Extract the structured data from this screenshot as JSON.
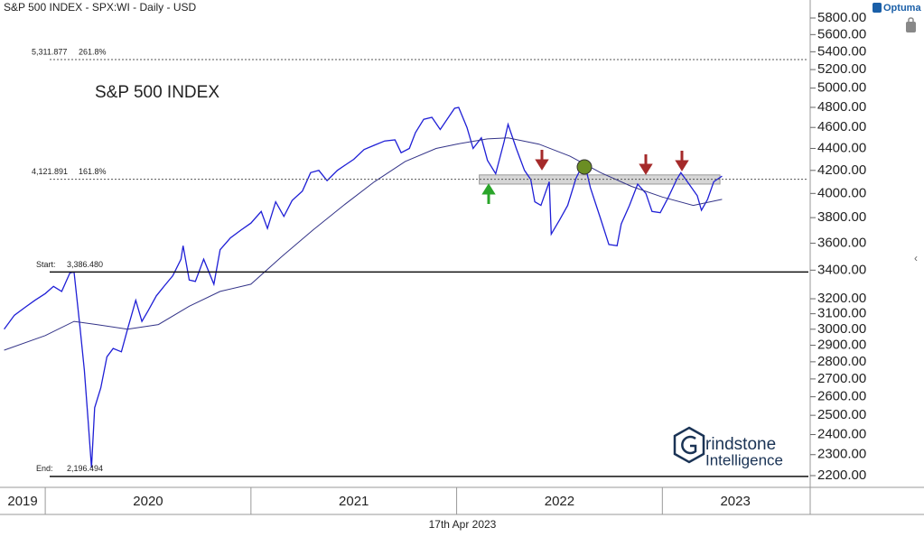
{
  "header": {
    "title": "S&P 500 INDEX - SPX:WI - Daily - USD",
    "brand": "Optuma",
    "date": "17th Apr 2023",
    "logo_line1": "rindstone",
    "logo_line2": "Intelligence"
  },
  "chart_data": {
    "type": "line",
    "title": "S&P 500 INDEX",
    "log_scale": true,
    "xlim": [
      2019.78,
      2023.71
    ],
    "ylim": [
      2146,
      5822
    ],
    "xticks": [
      {
        "value": 2019,
        "label": "2019"
      },
      {
        "value": 2020,
        "label": "2020"
      },
      {
        "value": 2021,
        "label": "2021"
      },
      {
        "value": 2022,
        "label": "2022"
      },
      {
        "value": 2023,
        "label": "2023"
      }
    ],
    "yticks": [
      {
        "value": 2200,
        "label": "2200.00"
      },
      {
        "value": 2300,
        "label": "2300.00"
      },
      {
        "value": 2400,
        "label": "2400.00"
      },
      {
        "value": 2500,
        "label": "2500.00"
      },
      {
        "value": 2600,
        "label": "2600.00"
      },
      {
        "value": 2700,
        "label": "2700.00"
      },
      {
        "value": 2800,
        "label": "2800.00"
      },
      {
        "value": 2900,
        "label": "2900.00"
      },
      {
        "value": 3000,
        "label": "3000.00"
      },
      {
        "value": 3100,
        "label": "3100.00"
      },
      {
        "value": 3200,
        "label": "3200.00"
      },
      {
        "value": 3400,
        "label": "3400.00"
      },
      {
        "value": 3600,
        "label": "3600.00"
      },
      {
        "value": 3800,
        "label": "3800.00"
      },
      {
        "value": 4000,
        "label": "4000.00"
      },
      {
        "value": 4200,
        "label": "4200.00"
      },
      {
        "value": 4400,
        "label": "4400.00"
      },
      {
        "value": 4600,
        "label": "4600.00"
      },
      {
        "value": 4800,
        "label": "4800.00"
      },
      {
        "value": 5000,
        "label": "5000.00"
      },
      {
        "value": 5200,
        "label": "5200.00"
      },
      {
        "value": 5400,
        "label": "5400.00"
      },
      {
        "value": 5600,
        "label": "5600.00"
      },
      {
        "value": 5800,
        "label": "5800.00"
      }
    ],
    "series": [
      {
        "color": "#1f1fd6",
        "x": [
          2019.8,
          2019.85,
          2019.9,
          2019.95,
          2020.0,
          2020.04,
          2020.08,
          2020.12,
          2020.14,
          2020.17,
          2020.19,
          2020.21,
          2020.225,
          2020.24,
          2020.27,
          2020.3,
          2020.33,
          2020.37,
          2020.4,
          2020.44,
          2020.47,
          2020.5,
          2020.54,
          2020.58,
          2020.62,
          2020.66,
          2020.67,
          2020.7,
          2020.73,
          2020.77,
          2020.82,
          2020.85,
          2020.9,
          2020.95,
          2021.0,
          2021.05,
          2021.08,
          2021.12,
          2021.16,
          2021.2,
          2021.25,
          2021.29,
          2021.33,
          2021.37,
          2021.42,
          2021.46,
          2021.5,
          2021.55,
          2021.6,
          2021.65,
          2021.7,
          2021.73,
          2021.77,
          2021.8,
          2021.84,
          2021.88,
          2021.92,
          2021.96,
          2021.99,
          2022.01,
          2022.05,
          2022.08,
          2022.12,
          2022.15,
          2022.19,
          2022.23,
          2022.25,
          2022.29,
          2022.33,
          2022.36,
          2022.38,
          2022.41,
          2022.45,
          2022.46,
          2022.5,
          2022.54,
          2022.58,
          2022.62,
          2022.65,
          2022.7,
          2022.74,
          2022.78,
          2022.8,
          2022.84,
          2022.88,
          2022.92,
          2022.95,
          2022.99,
          2023.03,
          2023.07,
          2023.09,
          2023.13,
          2023.17,
          2023.19,
          2023.22,
          2023.25,
          2023.29
        ],
        "values": [
          3000,
          3090,
          3140,
          3190,
          3235,
          3285,
          3250,
          3380,
          3386,
          3000,
          2750,
          2450,
          2237,
          2540,
          2650,
          2830,
          2880,
          2860,
          3000,
          3190,
          3050,
          3120,
          3220,
          3290,
          3360,
          3480,
          3580,
          3330,
          3320,
          3480,
          3300,
          3550,
          3640,
          3700,
          3756,
          3850,
          3714,
          3930,
          3810,
          3940,
          4020,
          4180,
          4200,
          4110,
          4200,
          4250,
          4300,
          4390,
          4430,
          4470,
          4480,
          4360,
          4400,
          4550,
          4680,
          4700,
          4580,
          4700,
          4790,
          4800,
          4600,
          4400,
          4500,
          4290,
          4170,
          4460,
          4630,
          4400,
          4200,
          4120,
          3930,
          3900,
          4100,
          3670,
          3780,
          3900,
          4130,
          4280,
          4050,
          3790,
          3590,
          3580,
          3750,
          3900,
          4080,
          4000,
          3850,
          3840,
          3970,
          4120,
          4180,
          4080,
          3980,
          3860,
          3950,
          4100,
          4150
        ]
      },
      {
        "color": "#333388",
        "x": [
          2019.8,
          2020.0,
          2020.14,
          2020.25,
          2020.4,
          2020.55,
          2020.7,
          2020.85,
          2021.0,
          2021.15,
          2021.3,
          2021.45,
          2021.6,
          2021.75,
          2021.9,
          2022.0,
          2022.15,
          2022.25,
          2022.4,
          2022.55,
          2022.7,
          2022.85,
          2023.0,
          2023.15,
          2023.29
        ],
        "values": [
          2870,
          2960,
          3050,
          3030,
          3000,
          3030,
          3150,
          3250,
          3300,
          3500,
          3700,
          3900,
          4100,
          4280,
          4400,
          4440,
          4490,
          4500,
          4440,
          4330,
          4180,
          4060,
          3970,
          3900,
          3950
        ]
      }
    ],
    "levels": [
      {
        "value": 5311.877,
        "value_label": "5,311.877",
        "percent_label": "261.8%",
        "style": "dotted"
      },
      {
        "value": 4121.891,
        "value_label": "4,121.891",
        "percent_label": "161.8%",
        "style": "dotted"
      },
      {
        "name": "Start:",
        "value": 3386.48,
        "value_label": "3,386.480",
        "style": "solid"
      },
      {
        "name": "End:",
        "value": 2196.494,
        "value_label": "2,196.494",
        "style": "solid"
      }
    ],
    "zone": {
      "x": [
        2022.11,
        2023.28
      ],
      "y": [
        4080,
        4160
      ],
      "color": "#cccccc"
    }
  }
}
